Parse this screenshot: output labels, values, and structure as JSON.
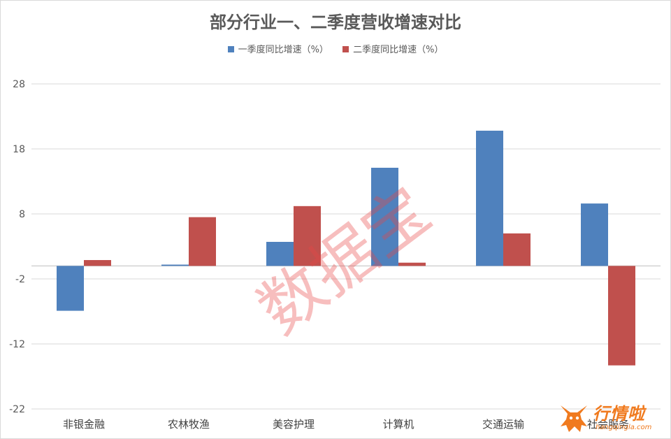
{
  "chart_data": {
    "type": "bar",
    "title": "部分行业一、二季度营收增速对比",
    "categories": [
      "非银金融",
      "农林牧渔",
      "美容护理",
      "计算机",
      "交通运输",
      "社会服务"
    ],
    "series": [
      {
        "name": "一季度同比增速（%）",
        "color": "#4f81bd",
        "values": [
          -6.9,
          0.2,
          3.7,
          15.1,
          20.8,
          9.6
        ]
      },
      {
        "name": "二季度同比增速（%）",
        "color": "#c0504d",
        "values": [
          0.9,
          7.5,
          9.2,
          0.5,
          5.0,
          -15.3
        ]
      }
    ],
    "yticks": [
      28,
      18,
      8,
      -2,
      -12,
      -22
    ],
    "ylim": [
      -22,
      28
    ],
    "grid": true,
    "legend_position": "top"
  },
  "watermark": "数据宝",
  "logo": {
    "text": "行情啦",
    "url": "hangqingla.com"
  }
}
